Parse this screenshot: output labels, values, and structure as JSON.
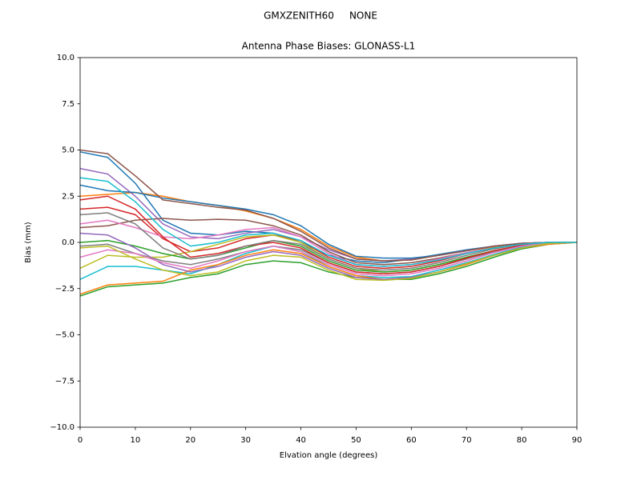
{
  "chart_data": {
    "type": "line",
    "suptitle": "GMXZENITH60     NONE",
    "title": "Antenna Phase Biases: GLONASS-L1",
    "x_label": "Elvation angle (degrees)",
    "y_label": "Bias (mm)",
    "x": [
      0,
      5,
      10,
      15,
      20,
      25,
      30,
      35,
      40,
      45,
      50,
      55,
      60,
      65,
      70,
      75,
      80,
      85,
      90
    ],
    "xlim": [
      0,
      90
    ],
    "xticks": [
      0,
      10,
      20,
      30,
      40,
      50,
      60,
      70,
      80,
      90
    ],
    "ylim": [
      -10,
      10
    ],
    "yticks": [
      {
        "value": -10,
        "label": "−10.0"
      },
      {
        "value": -7.5,
        "label": "−7.5"
      },
      {
        "value": -5,
        "label": "−5.0"
      },
      {
        "value": -2.5,
        "label": "−2.5"
      },
      {
        "value": 0,
        "label": "0.0"
      },
      2.5,
      {
        "value": 5,
        "label": "5.0"
      },
      7.5,
      {
        "value": 10,
        "label": "10.0"
      }
    ],
    "grid": false,
    "series": [
      {
        "color": "#1f77b4",
        "values": [
          4.9,
          4.6,
          3.2,
          1.2,
          0.5,
          0.4,
          0.6,
          0.5,
          0.0,
          -0.7,
          -1.0,
          -1.1,
          -0.9,
          -0.65,
          -0.4,
          -0.2,
          -0.05,
          0,
          0
        ]
      },
      {
        "color": "#ff7f0e",
        "values": [
          2.5,
          2.6,
          2.7,
          2.5,
          2.2,
          2.0,
          1.7,
          1.3,
          0.7,
          -0.2,
          -0.8,
          -1.0,
          -0.95,
          -0.7,
          -0.45,
          -0.25,
          -0.1,
          0,
          0
        ]
      },
      {
        "color": "#2ca02c",
        "values": [
          -2.9,
          -2.4,
          -2.3,
          -2.2,
          -1.9,
          -1.7,
          -1.2,
          -1.0,
          -1.1,
          -1.6,
          -1.9,
          -2.0,
          -2.0,
          -1.7,
          -1.3,
          -0.8,
          -0.35,
          -0.1,
          0
        ]
      },
      {
        "color": "#d62728",
        "values": [
          1.8,
          1.9,
          1.5,
          0.2,
          -0.5,
          -0.3,
          0.2,
          0.4,
          0.1,
          -0.8,
          -1.3,
          -1.4,
          -1.3,
          -1.0,
          -0.6,
          -0.3,
          -0.1,
          0,
          0
        ]
      },
      {
        "color": "#9467bd",
        "values": [
          4.0,
          3.7,
          2.5,
          1.0,
          0.3,
          0.2,
          0.5,
          0.7,
          0.3,
          -0.4,
          -0.9,
          -1.0,
          -0.9,
          -0.7,
          -0.45,
          -0.2,
          -0.05,
          0,
          0
        ]
      },
      {
        "color": "#8c564b",
        "values": [
          0.8,
          0.9,
          1.2,
          1.3,
          1.2,
          1.25,
          1.2,
          0.9,
          0.4,
          -0.5,
          -1.1,
          -1.2,
          -1.1,
          -0.85,
          -0.55,
          -0.3,
          -0.1,
          0,
          0
        ]
      },
      {
        "color": "#e377c2",
        "values": [
          1.0,
          1.2,
          0.8,
          0.3,
          0.2,
          0.4,
          0.7,
          0.8,
          0.3,
          -0.6,
          -1.2,
          -1.3,
          -1.2,
          -0.9,
          -0.55,
          -0.3,
          -0.1,
          0,
          0
        ]
      },
      {
        "color": "#7f7f7f",
        "values": [
          -0.2,
          -0.1,
          -0.6,
          -1.0,
          -1.2,
          -0.9,
          -0.5,
          -0.2,
          -0.4,
          -1.1,
          -1.6,
          -1.7,
          -1.6,
          -1.3,
          -0.9,
          -0.5,
          -0.2,
          0,
          0
        ]
      },
      {
        "color": "#bcbd22",
        "values": [
          -1.4,
          -0.7,
          -0.8,
          -0.8,
          -0.5,
          -0.1,
          0.3,
          0.4,
          0.0,
          -0.9,
          -1.4,
          -1.6,
          -1.5,
          -1.2,
          -0.8,
          -0.45,
          -0.15,
          0,
          0
        ]
      },
      {
        "color": "#17becf",
        "values": [
          -2.0,
          -1.3,
          -1.3,
          -1.5,
          -1.7,
          -1.2,
          -0.6,
          -0.2,
          -0.5,
          -1.3,
          -1.8,
          -1.9,
          -1.85,
          -1.5,
          -1.1,
          -0.65,
          -0.25,
          -0.05,
          0
        ]
      },
      {
        "color": "#1f77b4",
        "values": [
          3.1,
          2.8,
          2.7,
          2.4,
          2.2,
          2.0,
          1.8,
          1.5,
          0.9,
          -0.1,
          -0.75,
          -0.85,
          -0.85,
          -0.7,
          -0.45,
          -0.2,
          -0.05,
          0,
          0
        ]
      },
      {
        "color": "#ff7f0e",
        "values": [
          -2.8,
          -2.3,
          -2.2,
          -2.1,
          -1.5,
          -1.2,
          -0.7,
          -0.4,
          -0.6,
          -1.3,
          -1.8,
          -2.0,
          -1.9,
          -1.6,
          -1.2,
          -0.7,
          -0.3,
          -0.1,
          0
        ]
      },
      {
        "color": "#2ca02c",
        "values": [
          0.0,
          0.1,
          -0.2,
          -0.6,
          -0.9,
          -0.7,
          -0.3,
          0.1,
          -0.2,
          -1.0,
          -1.5,
          -1.6,
          -1.5,
          -1.2,
          -0.8,
          -0.45,
          -0.15,
          0,
          0
        ]
      },
      {
        "color": "#d62728",
        "values": [
          2.3,
          2.5,
          1.8,
          0.3,
          -0.8,
          -0.6,
          -0.2,
          0.0,
          -0.3,
          -1.1,
          -1.6,
          -1.7,
          -1.6,
          -1.3,
          -0.85,
          -0.45,
          -0.15,
          0,
          0
        ]
      },
      {
        "color": "#9467bd",
        "values": [
          0.5,
          0.4,
          -0.3,
          -1.2,
          -1.6,
          -1.3,
          -0.8,
          -0.5,
          -0.7,
          -1.4,
          -1.9,
          -2.0,
          -1.9,
          -1.6,
          -1.15,
          -0.7,
          -0.3,
          -0.05,
          0
        ]
      },
      {
        "color": "#8c564b",
        "values": [
          5.0,
          4.8,
          3.6,
          2.3,
          2.1,
          1.9,
          1.75,
          1.3,
          0.6,
          -0.3,
          -0.9,
          -1.0,
          -0.95,
          -0.7,
          -0.45,
          -0.2,
          -0.05,
          0,
          0
        ]
      },
      {
        "color": "#e377c2",
        "values": [
          -0.8,
          -0.4,
          -0.6,
          -1.1,
          -1.4,
          -1.0,
          -0.5,
          -0.2,
          -0.5,
          -1.2,
          -1.7,
          -1.8,
          -1.7,
          -1.4,
          -1.0,
          -0.55,
          -0.2,
          0,
          0
        ]
      },
      {
        "color": "#7f7f7f",
        "values": [
          1.5,
          1.6,
          1.0,
          -0.3,
          -0.9,
          -0.7,
          -0.2,
          0.1,
          -0.1,
          -0.9,
          -1.4,
          -1.5,
          -1.4,
          -1.1,
          -0.7,
          -0.35,
          -0.1,
          0,
          0
        ]
      },
      {
        "color": "#bcbd22",
        "values": [
          -0.3,
          -0.2,
          -0.9,
          -1.5,
          -1.8,
          -1.6,
          -1.0,
          -0.7,
          -0.8,
          -1.5,
          -2.0,
          -2.05,
          -1.95,
          -1.6,
          -1.15,
          -0.7,
          -0.3,
          -0.05,
          0
        ]
      },
      {
        "color": "#17becf",
        "values": [
          3.5,
          3.3,
          2.2,
          0.7,
          -0.2,
          0.0,
          0.4,
          0.5,
          0.1,
          -0.7,
          -1.2,
          -1.3,
          -1.2,
          -0.95,
          -0.6,
          -0.3,
          -0.1,
          0,
          0
        ]
      }
    ]
  }
}
